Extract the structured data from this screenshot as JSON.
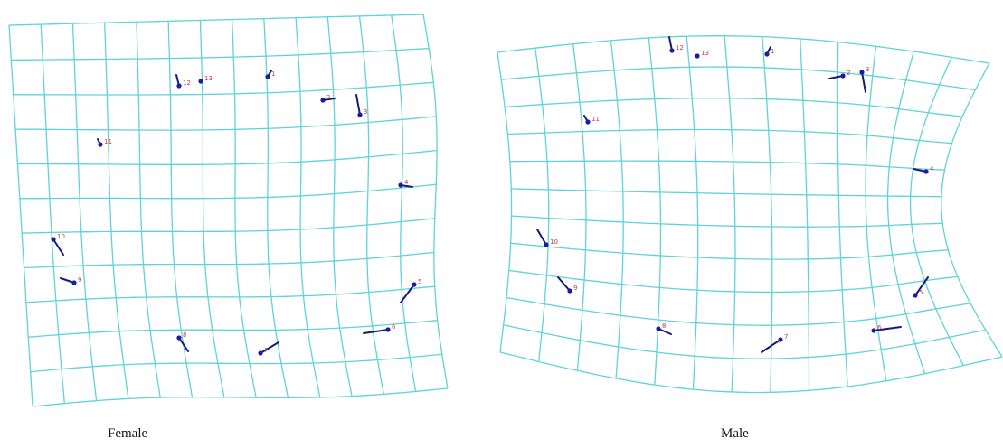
{
  "panels": [
    {
      "id": "female",
      "caption": "Female",
      "landmarks": [
        {
          "label": "1",
          "dx": 4,
          "dy": -7
        },
        {
          "label": "2",
          "dx": 13,
          "dy": -2
        },
        {
          "label": "3",
          "dx": -4,
          "dy": -22
        },
        {
          "label": "4",
          "dx": 13,
          "dy": 2
        },
        {
          "label": "5",
          "dx": -15,
          "dy": 20
        },
        {
          "label": "6",
          "dx": -27,
          "dy": 4
        },
        {
          "label": "7",
          "dx": 20,
          "dy": -12
        },
        {
          "label": "8",
          "dx": 10,
          "dy": 15
        },
        {
          "label": "9",
          "dx": -15,
          "dy": -5
        },
        {
          "label": "10",
          "dx": 11,
          "dy": 17
        },
        {
          "label": "11",
          "dx": -3,
          "dy": -6
        },
        {
          "label": "12",
          "dx": -3,
          "dy": -12
        },
        {
          "label": "13",
          "dx": 0,
          "dy": 0
        }
      ]
    },
    {
      "id": "male",
      "caption": "Male",
      "landmarks": [
        {
          "label": "1",
          "dx": 4,
          "dy": -8
        },
        {
          "label": "2",
          "dx": -15,
          "dy": 3
        },
        {
          "label": "3",
          "dx": 4,
          "dy": 22
        },
        {
          "label": "4",
          "dx": -14,
          "dy": -3
        },
        {
          "label": "5",
          "dx": 14,
          "dy": -20
        },
        {
          "label": "6",
          "dx": 30,
          "dy": -4
        },
        {
          "label": "7",
          "dx": -21,
          "dy": 14
        },
        {
          "label": "8",
          "dx": 14,
          "dy": 6
        },
        {
          "label": "9",
          "dx": -13,
          "dy": -15
        },
        {
          "label": "10",
          "dx": -10,
          "dy": -17
        },
        {
          "label": "11",
          "dx": -4,
          "dy": -7
        },
        {
          "label": "12",
          "dx": -3,
          "dy": -15
        },
        {
          "label": "13",
          "dx": 0,
          "dy": 0
        }
      ]
    }
  ]
}
